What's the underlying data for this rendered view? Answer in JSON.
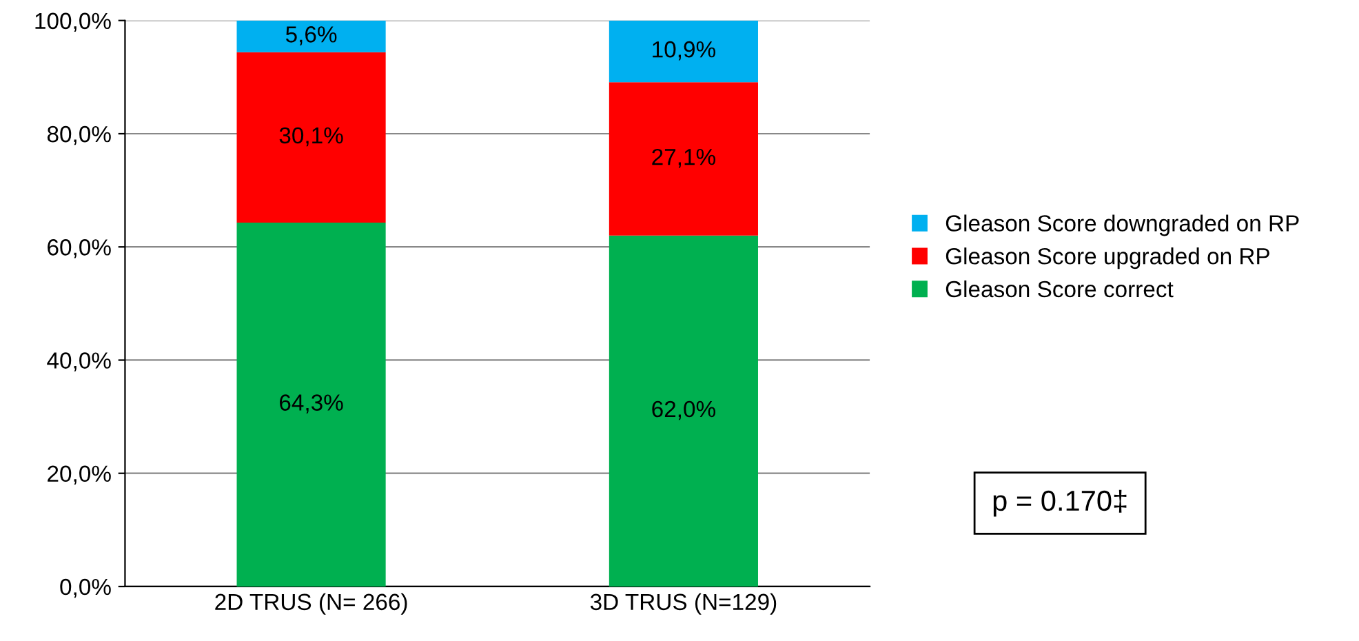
{
  "chart_data": {
    "type": "bar",
    "stacked": true,
    "categories": [
      "2D TRUS (N= 266)",
      "3D TRUS (N=129)"
    ],
    "series": [
      {
        "name": "Gleason Score correct",
        "color": "#00b050",
        "values": [
          64.3,
          62.0
        ],
        "value_labels": [
          "64,3%",
          "62,0%"
        ]
      },
      {
        "name": "Gleason Score upgraded on RP",
        "color": "#ff0000",
        "values": [
          30.1,
          27.1
        ],
        "value_labels": [
          "30,1%",
          "27,1%"
        ]
      },
      {
        "name": "Gleason Score downgraded on RP",
        "color": "#00b0f0",
        "values": [
          5.6,
          10.9
        ],
        "value_labels": [
          "5,6%",
          "10,9%"
        ]
      }
    ],
    "ylim": [
      0,
      100
    ],
    "yticks": [
      {
        "value": 0,
        "label": "0,0%"
      },
      {
        "value": 20,
        "label": "20,0%"
      },
      {
        "value": 40,
        "label": "40,0%"
      },
      {
        "value": 60,
        "label": "60,0%"
      },
      {
        "value": 80,
        "label": "80,0%"
      },
      {
        "value": 100,
        "label": "100,0%"
      }
    ],
    "grid": "y",
    "legend": "right",
    "annotations": [
      "p = 0.170‡"
    ]
  }
}
